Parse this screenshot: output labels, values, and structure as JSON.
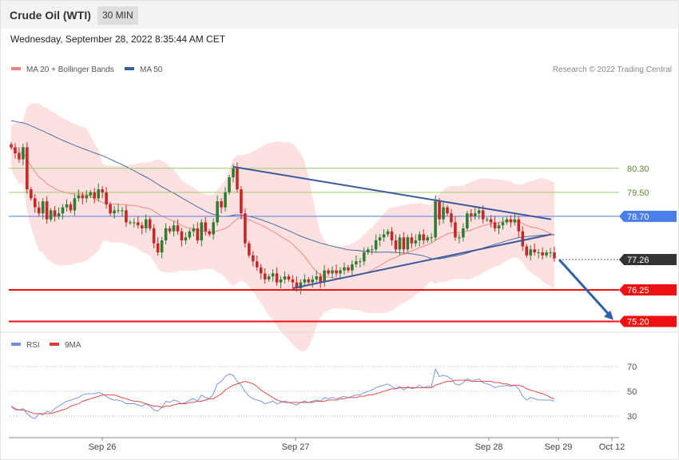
{
  "header": {
    "instrument": "Crude Oil (WTI)",
    "timeframe": "30 MIN",
    "datetime": "Wednesday, September 28, 2022 8:35:44 AM CET"
  },
  "legend": {
    "ma20_label": "MA 20 + Bollinger Bands",
    "ma50_label": "MA 50",
    "ma20_color": "#f08080",
    "ma50_color": "#3a5fa0",
    "copyright": "Research © 2022 Trading Central"
  },
  "colors": {
    "up": "#2e7d32",
    "down": "#c62828",
    "band_fill": "#fde0e0",
    "trendline": "#3a5a9c",
    "level_green": "#9ccc65",
    "level_blue": "#4a7ee8",
    "level_red": "#ee1111",
    "current_badge": "#333333",
    "arrow": "#2f5fa6",
    "rsi": "#6a8fe0",
    "rsi_ma": "#e53935"
  },
  "price_levels": [
    {
      "value": 80.3,
      "label": "80.30",
      "style": "green-text"
    },
    {
      "value": 79.5,
      "label": "79.50",
      "style": "green-text"
    },
    {
      "value": 78.7,
      "label": "78.70",
      "style": "blue-badge"
    },
    {
      "value": 77.26,
      "label": "77.26",
      "style": "dark-badge"
    },
    {
      "value": 76.25,
      "label": "76.25",
      "style": "red-badge"
    },
    {
      "value": 75.2,
      "label": "75.20",
      "style": "red-badge"
    }
  ],
  "rsi_panel": {
    "rsi_label": "RSI",
    "ma_label": "9MA",
    "levels": [
      "70",
      "50",
      "30"
    ]
  },
  "x_axis": {
    "ticks": [
      "Sep 26",
      "Sep 27",
      "Sep 28",
      "Sep 29",
      "Oct 12"
    ]
  },
  "chart_data": {
    "type": "candlestick",
    "yrange": [
      75.0,
      83.3
    ],
    "close": [
      81.0,
      80.8,
      80.6,
      81.0,
      79.6,
      79.3,
      79.0,
      78.8,
      79.2,
      78.6,
      78.9,
      78.7,
      78.8,
      79.0,
      79.1,
      78.9,
      79.3,
      79.4,
      79.3,
      79.4,
      79.5,
      79.3,
      79.6,
      79.5,
      79.1,
      78.8,
      78.9,
      78.9,
      78.9,
      78.5,
      78.5,
      78.5,
      78.4,
      78.3,
      78.6,
      78.3,
      77.8,
      77.5,
      77.9,
      78.3,
      78.2,
      78.4,
      78.2,
      77.9,
      78.0,
      78.2,
      78.3,
      77.9,
      78.5,
      78.2,
      78.1,
      78.5,
      79.2,
      79.0,
      79.5,
      80.0,
      80.3,
      79.6,
      78.8,
      77.8,
      77.4,
      77.2,
      77.0,
      76.8,
      76.6,
      76.7,
      76.8,
      76.5,
      76.6,
      76.7,
      76.6,
      76.5,
      76.3,
      76.5,
      76.6,
      76.5,
      76.6,
      76.7,
      76.5,
      76.9,
      76.8,
      76.9,
      76.8,
      76.9,
      77.0,
      76.9,
      77.1,
      77.2,
      77.2,
      77.5,
      77.6,
      77.6,
      77.9,
      78.0,
      78.1,
      78.2,
      77.9,
      77.6,
      78.0,
      77.6,
      78.0,
      77.8,
      77.9,
      78.1,
      77.9,
      78.0,
      78.0,
      79.2,
      78.6,
      79.0,
      78.8,
      78.5,
      78.0,
      78.0,
      78.3,
      78.8,
      78.7,
      78.8,
      78.9,
      78.6,
      78.6,
      78.5,
      78.3,
      78.4,
      78.5,
      78.6,
      78.5,
      78.6,
      78.2,
      77.7,
      77.4,
      77.6,
      77.5,
      77.5,
      77.4,
      77.5,
      77.5,
      77.3
    ]
  },
  "rsi_data": {
    "rsi": [
      38,
      35,
      35,
      36,
      32,
      29,
      28,
      32,
      31,
      34,
      33,
      36,
      38,
      40,
      42,
      43,
      44,
      45,
      47,
      48,
      48,
      48,
      49,
      48,
      46,
      44,
      43,
      43,
      42,
      40,
      40,
      40,
      39,
      38,
      40,
      38,
      35,
      34,
      37,
      42,
      41,
      43,
      42,
      40,
      41,
      43,
      44,
      42,
      47,
      45,
      44,
      48,
      56,
      58,
      62,
      64,
      63,
      58,
      55,
      50,
      46,
      44,
      43,
      42,
      40,
      41,
      42,
      40,
      41,
      42,
      41,
      40,
      39,
      41,
      42,
      41,
      42,
      43,
      42,
      45,
      44,
      45,
      44,
      45,
      46,
      45,
      46,
      47,
      47,
      49,
      50,
      51,
      53,
      54,
      55,
      56,
      54,
      52,
      54,
      51,
      54,
      52,
      53,
      55,
      53,
      54,
      54,
      68,
      62,
      63,
      62,
      60,
      56,
      55,
      57,
      60,
      59,
      59,
      60,
      57,
      56,
      55,
      53,
      54,
      54,
      55,
      54,
      55,
      52,
      46,
      43,
      45,
      44,
      43,
      43,
      43,
      43,
      42
    ],
    "ma9": [
      38,
      36,
      35,
      35,
      34,
      33,
      32,
      32,
      32,
      32,
      32,
      33,
      34,
      35,
      36,
      38,
      39,
      40,
      42,
      43,
      44,
      45,
      46,
      47,
      47,
      47,
      47,
      46,
      45,
      44,
      43,
      42,
      42,
      41,
      40,
      39,
      38,
      38,
      37,
      38,
      38,
      39,
      40,
      40,
      40,
      41,
      41,
      42,
      42,
      43,
      44,
      44,
      46,
      48,
      51,
      53,
      55,
      56,
      57,
      58,
      57,
      56,
      54,
      51,
      49,
      47,
      45,
      43,
      42,
      41,
      41,
      41,
      41,
      41,
      41,
      41,
      41,
      42,
      42,
      42,
      43,
      43,
      43,
      44,
      44,
      45,
      45,
      45,
      46,
      46,
      47,
      47,
      48,
      49,
      50,
      51,
      52,
      52,
      53,
      53,
      53,
      53,
      53,
      53,
      53,
      53,
      53,
      55,
      56,
      57,
      58,
      58,
      59,
      59,
      59,
      59,
      58,
      58,
      58,
      58,
      58,
      58,
      57,
      57,
      56,
      56,
      55,
      55,
      55,
      54,
      52,
      51,
      50,
      49,
      48,
      47,
      45,
      44
    ]
  }
}
